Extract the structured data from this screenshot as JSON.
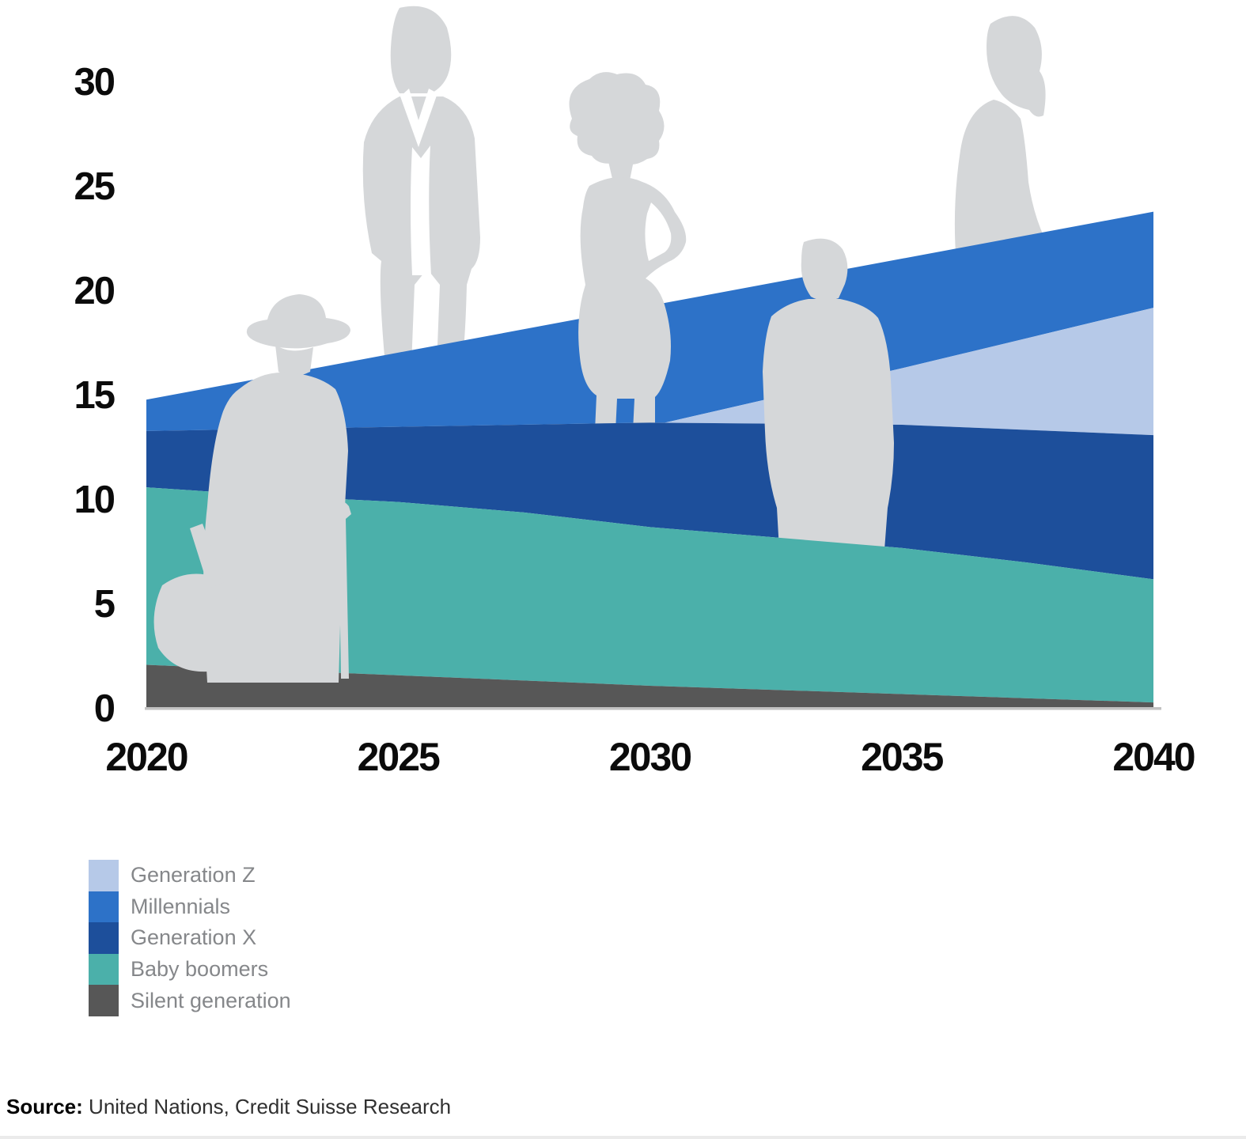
{
  "chart_data": {
    "type": "area",
    "stacked": true,
    "title": "",
    "xlabel": "",
    "ylabel": "",
    "grid": false,
    "legend_position": "bottom-left",
    "xlim": [
      2020,
      2040
    ],
    "ylim": [
      0,
      30
    ],
    "x_ticks": [
      2020,
      2025,
      2030,
      2035,
      2040
    ],
    "y_ticks": [
      30,
      25,
      20,
      15,
      10,
      5,
      0
    ],
    "years_sampled": [
      2020,
      2025,
      2030,
      2035,
      2040
    ],
    "series": [
      {
        "name": "Silent generation",
        "color": "#575757",
        "values": [
          2.1,
          1.6,
          1.1,
          0.7,
          0.3
        ]
      },
      {
        "name": "Baby boomers",
        "color": "#4BB0AA",
        "values": [
          8.5,
          8.3,
          7.6,
          7.0,
          5.9
        ]
      },
      {
        "name": "Generation X",
        "color": "#1D4F9B",
        "values": [
          2.7,
          3.6,
          5.0,
          5.9,
          6.9
        ]
      },
      {
        "name": "Generation Z",
        "color": "#B6C9E8",
        "values": [
          0,
          0,
          0,
          2.7,
          6.1
        ]
      },
      {
        "name": "Millennials",
        "color": "#2D72C8",
        "values": [
          1.5,
          3.5,
          5.6,
          5.3,
          4.6
        ]
      }
    ],
    "cumulative_boundaries": {
      "silent_top": [
        [
          2020,
          2.1
        ],
        [
          2025,
          1.6
        ],
        [
          2030,
          1.1
        ],
        [
          2035,
          0.7
        ],
        [
          2040,
          0.3
        ]
      ],
      "boomers_top": [
        [
          2020,
          10.6
        ],
        [
          2022.5,
          10.2
        ],
        [
          2025,
          9.9
        ],
        [
          2027.5,
          9.4
        ],
        [
          2030,
          8.7
        ],
        [
          2032.5,
          8.2
        ],
        [
          2035,
          7.7
        ],
        [
          2037.5,
          7.0
        ],
        [
          2040,
          6.2
        ]
      ],
      "genx_top": [
        [
          2020,
          13.3
        ],
        [
          2025,
          13.5
        ],
        [
          2030,
          13.7
        ],
        [
          2035,
          13.6
        ],
        [
          2040,
          13.1
        ]
      ],
      "genz_top": [
        [
          2020,
          13.3
        ],
        [
          2025,
          13.5
        ],
        [
          2030,
          13.7
        ],
        [
          2030.3,
          13.7
        ],
        [
          2035,
          16.3
        ],
        [
          2040,
          19.2
        ]
      ],
      "millennials_top": [
        [
          2020,
          14.8
        ],
        [
          2040,
          23.8
        ]
      ]
    }
  },
  "legend": {
    "items": [
      {
        "label": "Generation Z",
        "color": "#B6C9E8"
      },
      {
        "label": "Millennials",
        "color": "#2D72C8"
      },
      {
        "label": "Generation X",
        "color": "#1D4F9B"
      },
      {
        "label": "Baby boomers",
        "color": "#4BB0AA"
      },
      {
        "label": "Silent generation",
        "color": "#575757"
      }
    ]
  },
  "source": {
    "label": "Source:",
    "text": " United Nations, Credit Suisse Research"
  },
  "illustrations": [
    "elderly woman silhouette with wide-brim hat, handbag and cane",
    "woman silhouette with bob hair and open cardigan, hands in pockets",
    "woman silhouette with curly hair, hand on hip, wearing skirt",
    "older man silhouette in jacket",
    "young person silhouette slouched, looking at phone"
  ],
  "colors": {
    "silhouette": "#D5D7D9",
    "axis_line": "#C2C2C2",
    "axis_text": "#0B0B0B",
    "legend_text": "#85878A"
  }
}
